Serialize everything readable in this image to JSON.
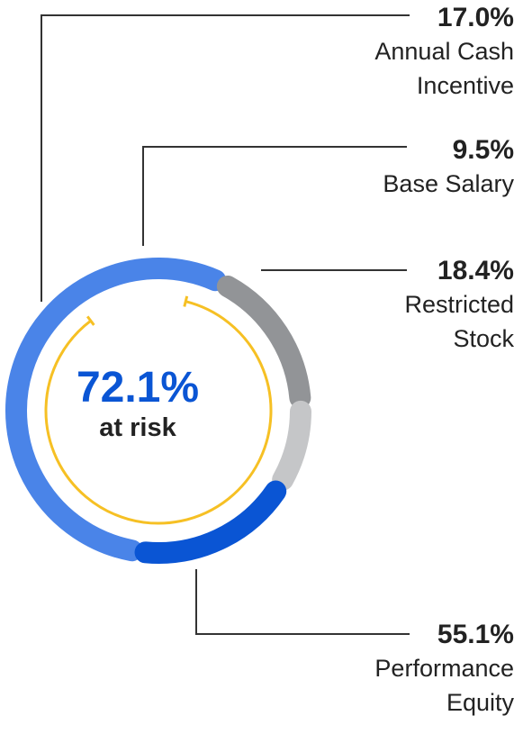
{
  "chart_data": {
    "type": "donut",
    "title": "",
    "center_value": "72.1%",
    "center_label": "at risk",
    "slices": [
      {
        "label": "Performance Equity",
        "value": 55.1,
        "value_label": "55.1%",
        "color": "#4a84e8"
      },
      {
        "label": "Annual Cash Incentive",
        "value": 17.0,
        "value_label": "17.0%",
        "color": "#929497"
      },
      {
        "label": "Base Salary",
        "value": 9.5,
        "value_label": "9.5%",
        "color": "#c5c6c8"
      },
      {
        "label": "Restricted Stock",
        "value": 18.4,
        "value_label": "18.4%",
        "color": "#0a55d4"
      }
    ],
    "at_risk_arc_color": "#f6c024",
    "leader_line_color": "#333333"
  }
}
